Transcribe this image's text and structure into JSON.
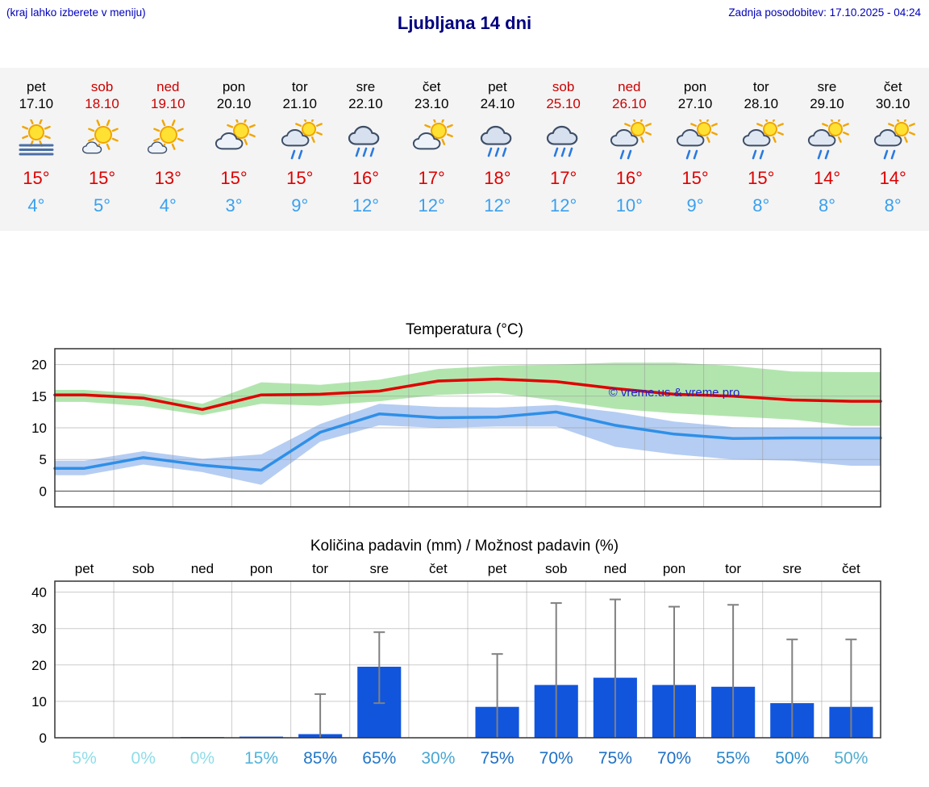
{
  "header": {
    "note": "(kraj lahko izberete v meniju)",
    "title": "Ljubljana 14 dni",
    "updated": "Zadnja posodobitev: 17.10.2025 - 04:24"
  },
  "colors": {
    "high_temp": "#dd0000",
    "low_temp": "#3aa0ee",
    "weekend": "#cc0000",
    "header_blue": "#0000bb",
    "title_navy": "#000080"
  },
  "forecast_days": [
    {
      "name": "pet",
      "date": "17.10",
      "weekend": false,
      "icon": "sun-fog-icon",
      "high": "15°",
      "low": "4°"
    },
    {
      "name": "sob",
      "date": "18.10",
      "weekend": true,
      "icon": "sun-small-cloud-icon",
      "high": "15°",
      "low": "5°"
    },
    {
      "name": "ned",
      "date": "19.10",
      "weekend": true,
      "icon": "sun-small-cloud-icon",
      "high": "13°",
      "low": "4°"
    },
    {
      "name": "pon",
      "date": "20.10",
      "weekend": false,
      "icon": "sun-cloud-icon",
      "high": "15°",
      "low": "3°"
    },
    {
      "name": "tor",
      "date": "21.10",
      "weekend": false,
      "icon": "sun-cloud-rain-icon",
      "high": "15°",
      "low": "9°"
    },
    {
      "name": "sre",
      "date": "22.10",
      "weekend": false,
      "icon": "cloud-rain-icon",
      "high": "16°",
      "low": "12°"
    },
    {
      "name": "čet",
      "date": "23.10",
      "weekend": false,
      "icon": "sun-cloud-icon",
      "high": "17°",
      "low": "12°"
    },
    {
      "name": "pet",
      "date": "24.10",
      "weekend": false,
      "icon": "cloud-rain-icon",
      "high": "18°",
      "low": "12°"
    },
    {
      "name": "sob",
      "date": "25.10",
      "weekend": true,
      "icon": "cloud-rain-icon",
      "high": "17°",
      "low": "12°"
    },
    {
      "name": "ned",
      "date": "26.10",
      "weekend": true,
      "icon": "sun-cloud-rain-icon",
      "high": "16°",
      "low": "10°"
    },
    {
      "name": "pon",
      "date": "27.10",
      "weekend": false,
      "icon": "sun-cloud-rain-icon",
      "high": "15°",
      "low": "9°"
    },
    {
      "name": "tor",
      "date": "28.10",
      "weekend": false,
      "icon": "sun-cloud-rain-icon",
      "high": "15°",
      "low": "8°"
    },
    {
      "name": "sre",
      "date": "29.10",
      "weekend": false,
      "icon": "sun-cloud-rain-icon",
      "high": "14°",
      "low": "8°"
    },
    {
      "name": "čet",
      "date": "30.10",
      "weekend": false,
      "icon": "sun-cloud-rain-icon",
      "high": "14°",
      "low": "8°"
    }
  ],
  "chart_data": [
    {
      "type": "line",
      "title": "Temperatura (°C)",
      "categories": [
        "pet",
        "sob",
        "ned",
        "pon",
        "tor",
        "sre",
        "čet",
        "pet",
        "sob",
        "ned",
        "pon",
        "tor",
        "sre",
        "čet"
      ],
      "ylim": [
        -2.5,
        22.5
      ],
      "yticks": [
        0,
        5,
        10,
        15,
        20
      ],
      "grid": true,
      "watermark": "© vreme.us & vreme.pro",
      "series": [
        {
          "name": "max temperatura",
          "color": "#e00000",
          "band_color": "#a5e0a0",
          "values": [
            15.2,
            14.7,
            12.9,
            15.2,
            15.3,
            15.8,
            17.4,
            17.7,
            17.3,
            16.2,
            15.3,
            15.0,
            14.4,
            14.2
          ],
          "band_high": [
            16.0,
            15.4,
            13.8,
            17.2,
            16.8,
            17.6,
            19.3,
            19.8,
            20.0,
            20.3,
            20.3,
            19.8,
            18.9,
            18.8
          ],
          "band_low": [
            14.1,
            13.4,
            12.0,
            13.8,
            13.5,
            14.2,
            15.2,
            15.5,
            14.3,
            13.0,
            12.3,
            11.8,
            11.3,
            10.3
          ]
        },
        {
          "name": "min temperatura",
          "color": "#2e8fe8",
          "band_color": "#a8c4f0",
          "values": [
            3.6,
            5.3,
            4.1,
            3.3,
            9.3,
            12.2,
            11.6,
            11.7,
            12.5,
            10.4,
            9.0,
            8.3,
            8.4,
            8.4
          ],
          "band_high": [
            4.8,
            6.3,
            5.1,
            5.8,
            10.6,
            13.8,
            13.3,
            13.2,
            13.6,
            12.5,
            11.0,
            10.1,
            10.0,
            10.0
          ],
          "band_low": [
            2.5,
            4.2,
            3.0,
            1.0,
            7.8,
            10.4,
            10.0,
            10.2,
            10.2,
            7.0,
            5.8,
            5.0,
            4.8,
            4.0
          ]
        }
      ]
    },
    {
      "type": "bar",
      "title": "Količina padavin (mm) / Možnost padavin (%)",
      "categories": [
        "pet",
        "sob",
        "ned",
        "pon",
        "tor",
        "sre",
        "čet",
        "pet",
        "sob",
        "ned",
        "pon",
        "tor",
        "sre",
        "čet"
      ],
      "ylim": [
        0,
        43
      ],
      "yticks": [
        0,
        10,
        20,
        30,
        40
      ],
      "grid": true,
      "bar_color": "#1155dd",
      "values": [
        0,
        0.1,
        0.2,
        0.3,
        1.0,
        19.5,
        0.1,
        8.5,
        14.5,
        16.5,
        14.5,
        14.0,
        9.5,
        8.5
      ],
      "whisker_high": [
        0,
        0,
        0,
        0,
        12,
        29,
        0,
        23,
        37,
        38,
        36,
        36.5,
        27,
        27
      ],
      "whisker_low": [
        0,
        0,
        0,
        0,
        0,
        9.5,
        0,
        0,
        0,
        0,
        0,
        0,
        0,
        0
      ],
      "probabilities": [
        {
          "label": "5%",
          "color": "#8fdde8"
        },
        {
          "label": "0%",
          "color": "#8fdde8"
        },
        {
          "label": "0%",
          "color": "#8fdde8"
        },
        {
          "label": "15%",
          "color": "#54b4da"
        },
        {
          "label": "85%",
          "color": "#2277c8"
        },
        {
          "label": "65%",
          "color": "#2277c8"
        },
        {
          "label": "30%",
          "color": "#49a6d2"
        },
        {
          "label": "75%",
          "color": "#1f6fc4"
        },
        {
          "label": "70%",
          "color": "#1f6fc4"
        },
        {
          "label": "75%",
          "color": "#1f6fc4"
        },
        {
          "label": "70%",
          "color": "#1f6fc4"
        },
        {
          "label": "55%",
          "color": "#2b85cc"
        },
        {
          "label": "50%",
          "color": "#2f8fcc"
        },
        {
          "label": "50%",
          "color": "#52aed0"
        }
      ]
    }
  ]
}
